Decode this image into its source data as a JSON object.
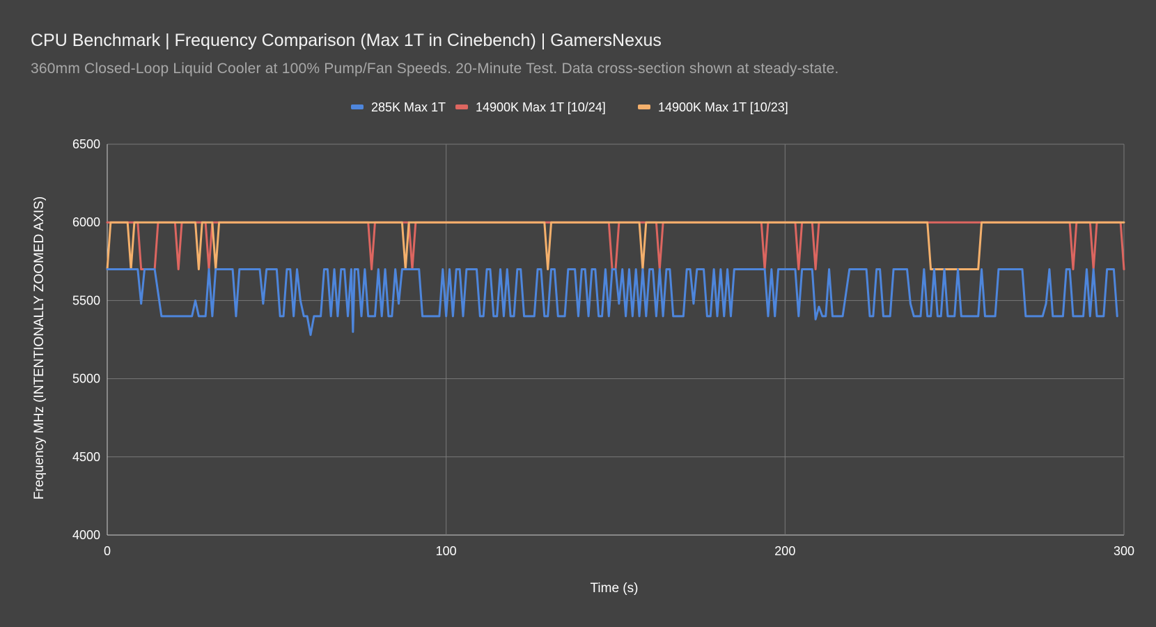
{
  "chart_data": {
    "type": "line",
    "title": "CPU Benchmark | Frequency Comparison (Max 1T in Cinebench) | GamersNexus",
    "subtitle": "360mm Closed-Loop Liquid Cooler at 100% Pump/Fan Speeds. 20-Minute Test. Data cross-section shown at steady-state.",
    "xlabel": "Time (s)",
    "ylabel": "Frequency MHz (INTENTIONALLY ZOOMED AXIS)",
    "xlim": [
      0,
      300
    ],
    "ylim": [
      4000,
      6500
    ],
    "x_ticks": [
      "0",
      "100",
      "200",
      "300"
    ],
    "y_ticks": [
      "4000",
      "4500",
      "5000",
      "5500",
      "6000",
      "6500"
    ],
    "grid": true,
    "legend_position": "top",
    "series": [
      {
        "name": "285K Max 1T",
        "color": "#4e86dc",
        "points": [
          [
            0,
            5700
          ],
          [
            9,
            5700
          ],
          [
            10,
            5480
          ],
          [
            11,
            5700
          ],
          [
            14,
            5700
          ],
          [
            16,
            5400
          ],
          [
            25,
            5400
          ],
          [
            26,
            5500
          ],
          [
            27,
            5400
          ],
          [
            29,
            5400
          ],
          [
            30,
            5700
          ],
          [
            31,
            5400
          ],
          [
            32,
            5700
          ],
          [
            37,
            5700
          ],
          [
            38,
            5400
          ],
          [
            39,
            5700
          ],
          [
            45,
            5700
          ],
          [
            46,
            5480
          ],
          [
            47,
            5700
          ],
          [
            50,
            5700
          ],
          [
            51,
            5400
          ],
          [
            52,
            5400
          ],
          [
            53,
            5700
          ],
          [
            54,
            5700
          ],
          [
            55,
            5400
          ],
          [
            56,
            5700
          ],
          [
            57,
            5500
          ],
          [
            58,
            5400
          ],
          [
            59,
            5400
          ],
          [
            60,
            5280
          ],
          [
            61,
            5400
          ],
          [
            63,
            5400
          ],
          [
            64,
            5700
          ],
          [
            65,
            5700
          ],
          [
            66,
            5400
          ],
          [
            67,
            5700
          ],
          [
            68,
            5400
          ],
          [
            69,
            5700
          ],
          [
            70,
            5700
          ],
          [
            71,
            5400
          ],
          [
            72,
            5700
          ],
          [
            72.5,
            5300
          ],
          [
            73,
            5700
          ],
          [
            74,
            5700
          ],
          [
            75,
            5400
          ],
          [
            76,
            5700
          ],
          [
            77,
            5400
          ],
          [
            79,
            5400
          ],
          [
            80,
            5700
          ],
          [
            81,
            5400
          ],
          [
            82,
            5700
          ],
          [
            83,
            5400
          ],
          [
            84,
            5400
          ],
          [
            85,
            5700
          ],
          [
            86,
            5480
          ],
          [
            87,
            5700
          ],
          [
            92,
            5700
          ],
          [
            93,
            5400
          ],
          [
            98,
            5400
          ],
          [
            99,
            5700
          ],
          [
            100,
            5400
          ],
          [
            101,
            5700
          ],
          [
            102,
            5400
          ],
          [
            103,
            5700
          ],
          [
            104,
            5700
          ],
          [
            105,
            5400
          ],
          [
            106,
            5700
          ],
          [
            109,
            5700
          ],
          [
            110,
            5400
          ],
          [
            111,
            5400
          ],
          [
            112,
            5700
          ],
          [
            113,
            5700
          ],
          [
            114,
            5400
          ],
          [
            115,
            5400
          ],
          [
            116,
            5700
          ],
          [
            117,
            5400
          ],
          [
            118,
            5700
          ],
          [
            119,
            5400
          ],
          [
            120,
            5400
          ],
          [
            121,
            5700
          ],
          [
            122,
            5700
          ],
          [
            123,
            5400
          ],
          [
            126,
            5400
          ],
          [
            127,
            5700
          ],
          [
            128,
            5700
          ],
          [
            129,
            5400
          ],
          [
            130,
            5400
          ],
          [
            131,
            5700
          ],
          [
            132,
            5700
          ],
          [
            133,
            5400
          ],
          [
            135,
            5400
          ],
          [
            136,
            5700
          ],
          [
            138,
            5700
          ],
          [
            139,
            5400
          ],
          [
            140,
            5700
          ],
          [
            141,
            5700
          ],
          [
            142,
            5400
          ],
          [
            143,
            5700
          ],
          [
            144,
            5700
          ],
          [
            145,
            5400
          ],
          [
            146,
            5400
          ],
          [
            147,
            5700
          ],
          [
            148,
            5400
          ],
          [
            149,
            5700
          ],
          [
            150,
            5700
          ],
          [
            151,
            5480
          ],
          [
            152,
            5700
          ],
          [
            153,
            5400
          ],
          [
            154,
            5700
          ],
          [
            155,
            5400
          ],
          [
            156,
            5700
          ],
          [
            157,
            5400
          ],
          [
            158,
            5700
          ],
          [
            159,
            5400
          ],
          [
            160,
            5700
          ],
          [
            161,
            5700
          ],
          [
            162,
            5400
          ],
          [
            163,
            5700
          ],
          [
            164,
            5400
          ],
          [
            165,
            5700
          ],
          [
            166,
            5700
          ],
          [
            167,
            5400
          ],
          [
            170,
            5400
          ],
          [
            171,
            5700
          ],
          [
            172,
            5700
          ],
          [
            173,
            5480
          ],
          [
            174,
            5700
          ],
          [
            176,
            5700
          ],
          [
            177,
            5400
          ],
          [
            178,
            5400
          ],
          [
            179,
            5700
          ],
          [
            180,
            5400
          ],
          [
            181,
            5700
          ],
          [
            182,
            5400
          ],
          [
            183,
            5700
          ],
          [
            184,
            5400
          ],
          [
            185,
            5700
          ],
          [
            186,
            5700
          ],
          [
            194,
            5700
          ],
          [
            195,
            5400
          ],
          [
            196,
            5700
          ],
          [
            197,
            5400
          ],
          [
            198,
            5700
          ],
          [
            203,
            5700
          ],
          [
            204,
            5400
          ],
          [
            205,
            5700
          ],
          [
            208,
            5700
          ],
          [
            209,
            5380
          ],
          [
            210,
            5460
          ],
          [
            211,
            5400
          ],
          [
            212,
            5400
          ],
          [
            213,
            5700
          ],
          [
            214,
            5400
          ],
          [
            217,
            5400
          ],
          [
            219,
            5700
          ],
          [
            224,
            5700
          ],
          [
            225,
            5400
          ],
          [
            226,
            5400
          ],
          [
            227,
            5700
          ],
          [
            228,
            5700
          ],
          [
            229,
            5400
          ],
          [
            231,
            5400
          ],
          [
            232,
            5700
          ],
          [
            236,
            5700
          ],
          [
            237,
            5480
          ],
          [
            238,
            5400
          ],
          [
            240,
            5400
          ],
          [
            241,
            5700
          ],
          [
            242,
            5400
          ],
          [
            243,
            5400
          ],
          [
            244,
            5700
          ],
          [
            245,
            5400
          ],
          [
            246,
            5400
          ],
          [
            247,
            5700
          ],
          [
            248,
            5400
          ],
          [
            250,
            5400
          ],
          [
            251,
            5700
          ],
          [
            252,
            5400
          ],
          [
            257,
            5400
          ],
          [
            258,
            5700
          ],
          [
            259,
            5400
          ],
          [
            262,
            5400
          ],
          [
            263,
            5700
          ],
          [
            270,
            5700
          ],
          [
            271,
            5400
          ],
          [
            276,
            5400
          ],
          [
            277,
            5480
          ],
          [
            278,
            5700
          ],
          [
            279,
            5400
          ],
          [
            282,
            5400
          ],
          [
            283,
            5700
          ],
          [
            284,
            5700
          ],
          [
            285,
            5400
          ],
          [
            288,
            5400
          ],
          [
            289,
            5700
          ],
          [
            290,
            5400
          ],
          [
            291,
            5700
          ],
          [
            292,
            5400
          ],
          [
            294,
            5400
          ],
          [
            295,
            5700
          ],
          [
            297,
            5700
          ],
          [
            298,
            5400
          ]
        ]
      },
      {
        "name": "14900K Max 1T [10/24]",
        "color": "#dd6660",
        "points": [
          [
            0,
            6000
          ],
          [
            9,
            6000
          ],
          [
            10,
            5700
          ],
          [
            14,
            5700
          ],
          [
            15,
            6000
          ],
          [
            20,
            6000
          ],
          [
            21,
            5700
          ],
          [
            22,
            6000
          ],
          [
            29,
            6000
          ],
          [
            30,
            5700
          ],
          [
            31,
            6000
          ],
          [
            77,
            6000
          ],
          [
            78,
            5700
          ],
          [
            79,
            6000
          ],
          [
            89,
            6000
          ],
          [
            90,
            5700
          ],
          [
            91,
            6000
          ],
          [
            148,
            6000
          ],
          [
            149,
            5700
          ],
          [
            150,
            5700
          ],
          [
            151,
            6000
          ],
          [
            162,
            6000
          ],
          [
            163,
            5700
          ],
          [
            164,
            6000
          ],
          [
            193,
            6000
          ],
          [
            194,
            5700
          ],
          [
            195,
            6000
          ],
          [
            203,
            6000
          ],
          [
            204,
            5700
          ],
          [
            205,
            6000
          ],
          [
            208,
            6000
          ],
          [
            209,
            5700
          ],
          [
            210,
            6000
          ],
          [
            284,
            6000
          ],
          [
            285,
            5700
          ],
          [
            286,
            6000
          ],
          [
            290,
            6000
          ],
          [
            291,
            5700
          ],
          [
            292,
            6000
          ],
          [
            299,
            6000
          ],
          [
            300,
            5700
          ]
        ]
      },
      {
        "name": "14900K Max 1T [10/23]",
        "color": "#f4b06c",
        "points": [
          [
            0,
            5700
          ],
          [
            1,
            6000
          ],
          [
            6,
            6000
          ],
          [
            7,
            5700
          ],
          [
            8,
            6000
          ],
          [
            26,
            6000
          ],
          [
            27,
            5700
          ],
          [
            28,
            6000
          ],
          [
            31,
            6000
          ],
          [
            32,
            5700
          ],
          [
            33,
            6000
          ],
          [
            87,
            6000
          ],
          [
            88,
            5700
          ],
          [
            89,
            6000
          ],
          [
            129,
            6000
          ],
          [
            130,
            5700
          ],
          [
            131,
            6000
          ],
          [
            157,
            6000
          ],
          [
            158,
            5700
          ],
          [
            159,
            6000
          ],
          [
            242,
            6000
          ],
          [
            243,
            5700
          ],
          [
            257,
            5700
          ],
          [
            258,
            6000
          ],
          [
            300,
            6000
          ]
        ]
      }
    ]
  }
}
